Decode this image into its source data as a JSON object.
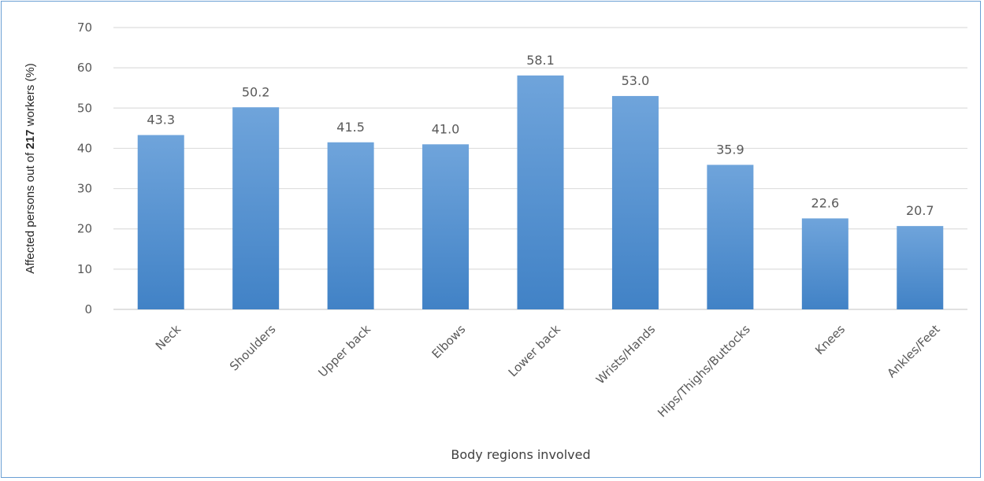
{
  "chart_data": {
    "type": "bar",
    "title": "",
    "xlabel": "Body regions involved",
    "ylabel_parts": [
      "Affected persons out of ",
      "217",
      " workers  (%)"
    ],
    "categories": [
      "Neck",
      "Shoulders",
      "Upper back",
      "Elbows",
      "Lower back",
      "Wrists/Hands",
      "Hips/Thighs/Buttocks",
      "Knees",
      "Ankles/Feet"
    ],
    "values": [
      43.3,
      50.2,
      41.5,
      41.0,
      58.1,
      53.0,
      35.9,
      22.6,
      20.7
    ],
    "data_labels": [
      "43.3",
      "50.2",
      "41.5",
      "41.0",
      "58.1",
      "53.0",
      "35.9",
      "22.6",
      "20.7"
    ],
    "ylim": [
      0,
      70
    ],
    "yticks": [
      0,
      10,
      20,
      30,
      40,
      50,
      60,
      70
    ],
    "grid": true,
    "legend": "none",
    "bar_color_top": "#6fa4db",
    "bar_color_bottom": "#4182c6"
  }
}
